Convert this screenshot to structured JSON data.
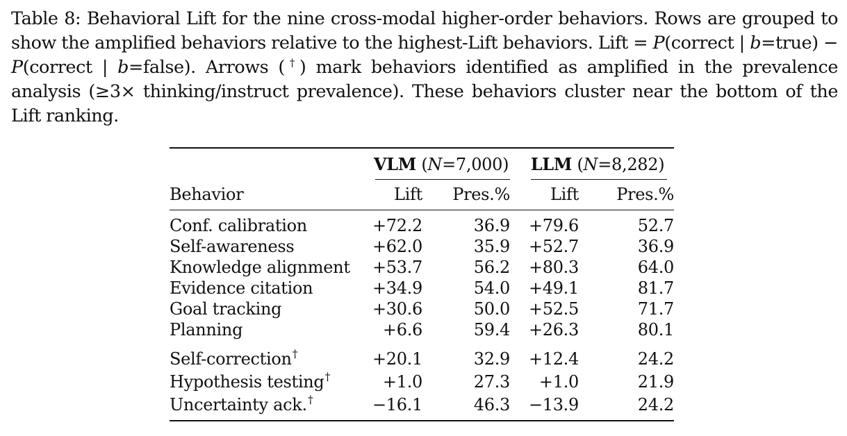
{
  "caption": {
    "label": "Table 8:",
    "s1": "Behavioral Lift for the nine cross-modal higher-order behaviors. Rows are grouped to show the amplified behaviors relative to the highest-Lift behaviors. Lift",
    "eq": " = ",
    "p1": "P",
    "p1_arg": "(correct | ",
    "b1": "b",
    "p1_cond": "=true) − ",
    "p2": "P",
    "p2_arg": "(correct | ",
    "b2": "b",
    "p2_cond": "=false).",
    "s2": " Arrows (",
    "dagger": "†",
    "s3": ") mark behaviors identified as amplified in the prevalence analysis (≥3× thinking/instruct prevalence). These behaviors cluster near the bottom of the Lift ranking."
  },
  "table": {
    "groups": [
      {
        "name": "VLM",
        "n_label": "N",
        "n_value": "=7,000)",
        "open": " ("
      },
      {
        "name": "LLM",
        "n_label": "N",
        "n_value": "=8,282)",
        "open": " ("
      }
    ],
    "headers": {
      "behavior": "Behavior",
      "vlm_lift": "Lift",
      "vlm_pres": "Pres.%",
      "llm_lift": "Lift",
      "llm_pres": "Pres.%"
    },
    "rows": [
      {
        "behavior": "Conf. calibration",
        "amplified": false,
        "vlm_lift": "+72.2",
        "vlm_pres": "36.9",
        "llm_lift": "+79.6",
        "llm_pres": "52.7"
      },
      {
        "behavior": "Self-awareness",
        "amplified": false,
        "vlm_lift": "+62.0",
        "vlm_pres": "35.9",
        "llm_lift": "+52.7",
        "llm_pres": "36.9"
      },
      {
        "behavior": "Knowledge alignment",
        "amplified": false,
        "vlm_lift": "+53.7",
        "vlm_pres": "56.2",
        "llm_lift": "+80.3",
        "llm_pres": "64.0"
      },
      {
        "behavior": "Evidence citation",
        "amplified": false,
        "vlm_lift": "+34.9",
        "vlm_pres": "54.0",
        "llm_lift": "+49.1",
        "llm_pres": "81.7"
      },
      {
        "behavior": "Goal tracking",
        "amplified": false,
        "vlm_lift": "+30.6",
        "vlm_pres": "50.0",
        "llm_lift": "+52.5",
        "llm_pres": "71.7"
      },
      {
        "behavior": "Planning",
        "amplified": false,
        "vlm_lift": "+6.6",
        "vlm_pres": "59.4",
        "llm_lift": "+26.3",
        "llm_pres": "80.1"
      },
      {
        "behavior": "Self-correction",
        "amplified": true,
        "vlm_lift": "+20.1",
        "vlm_pres": "32.9",
        "llm_lift": "+12.4",
        "llm_pres": "24.2"
      },
      {
        "behavior": "Hypothesis testing",
        "amplified": true,
        "vlm_lift": "+1.0",
        "vlm_pres": "27.3",
        "llm_lift": "+1.0",
        "llm_pres": "21.9"
      },
      {
        "behavior": "Uncertainty ack.",
        "amplified": true,
        "vlm_lift": "−16.1",
        "vlm_pres": "46.3",
        "llm_lift": "−13.9",
        "llm_pres": "24.2"
      }
    ],
    "dagger": "†"
  }
}
